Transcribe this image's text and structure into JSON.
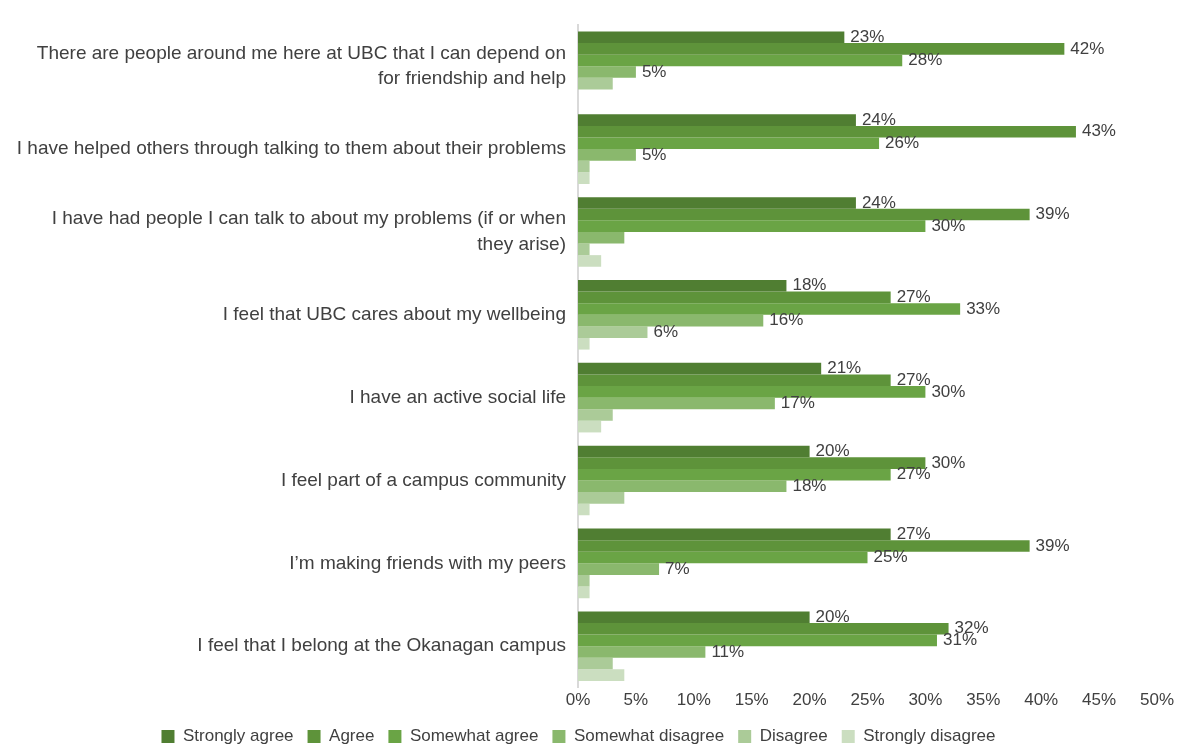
{
  "chart_data": {
    "type": "bar",
    "orientation": "horizontal",
    "categories": [
      "There are people around me here at UBC that I can depend on for friendship and help",
      "I have helped others through talking to them about their problems",
      "I have had people I can talk to about my problems (if or when they arise)",
      "I feel that UBC cares about my wellbeing",
      "I have an active social life",
      "I feel part of a campus community",
      "I’m making friends with my peers",
      "I feel that I belong at the Okanagan campus"
    ],
    "series": [
      {
        "name": "Strongly agree",
        "color": "#507e32",
        "values": [
          23,
          24,
          24,
          18,
          21,
          20,
          27,
          20
        ],
        "value_labels": [
          "23%",
          "24%",
          "24%",
          "18%",
          "21%",
          "20%",
          "27%",
          "20%"
        ]
      },
      {
        "name": "Agree",
        "color": "#5e933a",
        "values": [
          42,
          43,
          39,
          27,
          27,
          30,
          39,
          32
        ],
        "value_labels": [
          "42%",
          "43%",
          "39%",
          "27%",
          "27%",
          "30%",
          "39%",
          "32%"
        ]
      },
      {
        "name": "Somewhat agree",
        "color": "#6aa445",
        "values": [
          28,
          26,
          30,
          33,
          30,
          27,
          25,
          31
        ],
        "value_labels": [
          "28%",
          "26%",
          "30%",
          "33%",
          "30%",
          "27%",
          "25%",
          "31%"
        ]
      },
      {
        "name": "Somewhat disagree",
        "color": "#8ab86d",
        "values": [
          5,
          5,
          4,
          16,
          17,
          18,
          7,
          11
        ],
        "value_labels": [
          "5%",
          "5%",
          null,
          "16%",
          "17%",
          "18%",
          "7%",
          "11%"
        ]
      },
      {
        "name": "Disagree",
        "color": "#abcb98",
        "values": [
          3,
          1,
          1,
          6,
          3,
          4,
          1,
          3
        ],
        "value_labels": [
          null,
          null,
          null,
          "6%",
          null,
          null,
          null,
          null
        ]
      },
      {
        "name": "Strongly disagree",
        "color": "#cbdec0",
        "values": [
          0,
          1,
          2,
          1,
          2,
          1,
          1,
          4
        ],
        "value_labels": [
          null,
          null,
          null,
          null,
          null,
          null,
          null,
          null
        ]
      }
    ],
    "xlim": [
      0,
      50
    ],
    "xticks": [
      {
        "value": 0,
        "label": "0%"
      },
      {
        "value": 5,
        "label": "5%"
      },
      {
        "value": 10,
        "label": "10%"
      },
      {
        "value": 15,
        "label": "15%"
      },
      {
        "value": 20,
        "label": "20%"
      },
      {
        "value": 25,
        "label": "25%"
      },
      {
        "value": 30,
        "label": "30%"
      },
      {
        "value": 35,
        "label": "35%"
      },
      {
        "value": 40,
        "label": "40%"
      },
      {
        "value": 45,
        "label": "45%"
      },
      {
        "value": 50,
        "label": "50%"
      }
    ],
    "grid": false,
    "legend": "bottom"
  }
}
